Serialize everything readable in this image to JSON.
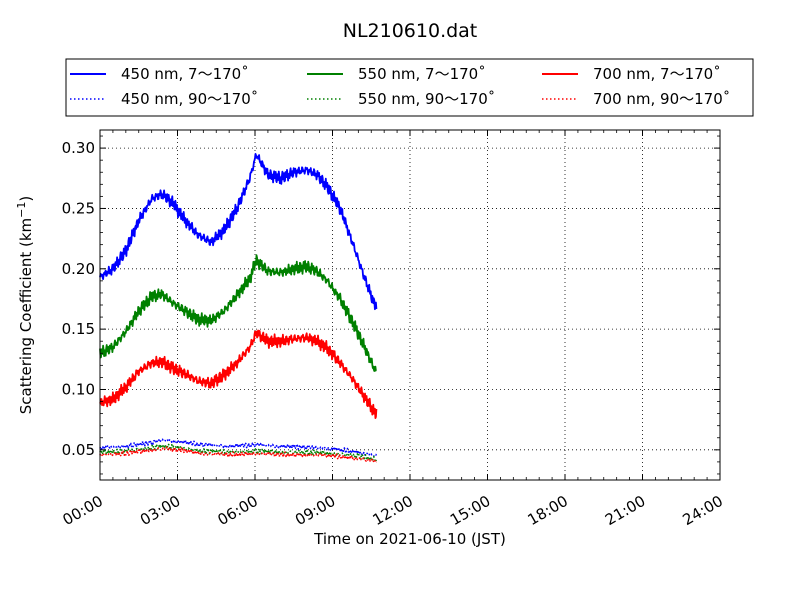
{
  "chart_data": {
    "type": "line",
    "title": "NL210610.dat",
    "xlabel": "Time on 2021-06-10 (JST)",
    "ylabel_main": "Scattering Coefficient (km",
    "ylabel_sup": "−1",
    "ylabel_end": ")",
    "x_axis": {
      "unit": "hours",
      "range": [
        0,
        24
      ],
      "ticks": [
        0,
        3,
        6,
        9,
        12,
        15,
        18,
        21,
        24
      ],
      "tick_labels": [
        "00:00",
        "03:00",
        "06:00",
        "09:00",
        "12:00",
        "15:00",
        "18:00",
        "21:00",
        "24:00"
      ]
    },
    "y_axis": {
      "range": [
        0.025,
        0.315
      ],
      "ticks": [
        0.05,
        0.1,
        0.15,
        0.2,
        0.25,
        0.3
      ],
      "tick_labels": [
        "0.05",
        "0.10",
        "0.15",
        "0.20",
        "0.25",
        "0.30"
      ]
    },
    "grid": true,
    "legend_position": "top, above plot",
    "series": [
      {
        "name": "450 nm, 7～170˚",
        "color": "#0000ff",
        "style": "solid",
        "x": [
          0,
          0.5,
          1,
          1.5,
          2,
          2.4,
          2.8,
          3.3,
          3.8,
          4.3,
          4.8,
          5.3,
          5.8,
          6.05,
          6.5,
          7,
          7.5,
          8,
          8.4,
          8.8,
          9.3,
          9.8,
          10.2,
          10.6,
          10.7
        ],
        "y": [
          0.193,
          0.2,
          0.215,
          0.24,
          0.258,
          0.262,
          0.255,
          0.24,
          0.228,
          0.222,
          0.232,
          0.25,
          0.275,
          0.295,
          0.278,
          0.275,
          0.28,
          0.282,
          0.278,
          0.268,
          0.25,
          0.22,
          0.195,
          0.172,
          0.17
        ]
      },
      {
        "name": "550 nm, 7～170˚",
        "color": "#008000",
        "style": "solid",
        "x": [
          0,
          0.5,
          1,
          1.5,
          2,
          2.4,
          2.8,
          3.3,
          3.8,
          4.3,
          4.8,
          5.3,
          5.8,
          6.05,
          6.5,
          7,
          7.5,
          8,
          8.4,
          8.8,
          9.3,
          9.8,
          10.2,
          10.6,
          10.7
        ],
        "y": [
          0.13,
          0.135,
          0.148,
          0.165,
          0.177,
          0.179,
          0.172,
          0.165,
          0.158,
          0.157,
          0.165,
          0.178,
          0.192,
          0.207,
          0.198,
          0.197,
          0.2,
          0.202,
          0.198,
          0.19,
          0.175,
          0.155,
          0.137,
          0.118,
          0.115
        ]
      },
      {
        "name": "700 nm, 7～170˚",
        "color": "#ff0000",
        "style": "solid",
        "x": [
          0,
          0.5,
          1,
          1.5,
          2,
          2.4,
          2.8,
          3.3,
          3.8,
          4.3,
          4.8,
          5.3,
          5.8,
          6.05,
          6.5,
          7,
          7.5,
          8,
          8.4,
          8.8,
          9.3,
          9.8,
          10.2,
          10.6,
          10.7
        ],
        "y": [
          0.089,
          0.092,
          0.102,
          0.115,
          0.122,
          0.123,
          0.118,
          0.113,
          0.107,
          0.105,
          0.112,
          0.122,
          0.135,
          0.147,
          0.14,
          0.14,
          0.142,
          0.143,
          0.14,
          0.134,
          0.122,
          0.108,
          0.095,
          0.082,
          0.08
        ]
      },
      {
        "name": "450 nm, 90～170˚",
        "color": "#0000ff",
        "style": "dotted",
        "x": [
          0,
          1,
          2,
          2.5,
          3,
          4,
          5,
          6,
          7,
          8,
          9,
          10,
          10.7
        ],
        "y": [
          0.052,
          0.053,
          0.056,
          0.058,
          0.057,
          0.054,
          0.053,
          0.054,
          0.053,
          0.052,
          0.051,
          0.048,
          0.045
        ]
      },
      {
        "name": "550 nm, 90～170˚",
        "color": "#008000",
        "style": "dotted",
        "x": [
          0,
          1,
          2,
          2.5,
          3,
          4,
          5,
          6,
          7,
          8,
          9,
          10,
          10.7
        ],
        "y": [
          0.048,
          0.049,
          0.052,
          0.053,
          0.052,
          0.049,
          0.048,
          0.049,
          0.048,
          0.048,
          0.047,
          0.045,
          0.042
        ]
      },
      {
        "name": "700 nm, 90～170˚",
        "color": "#ff0000",
        "style": "dotted",
        "x": [
          0,
          1,
          2,
          2.5,
          3,
          4,
          5,
          6,
          7,
          8,
          9,
          10,
          10.7
        ],
        "y": [
          0.046,
          0.047,
          0.05,
          0.051,
          0.05,
          0.047,
          0.046,
          0.047,
          0.046,
          0.046,
          0.045,
          0.043,
          0.04
        ]
      }
    ]
  }
}
